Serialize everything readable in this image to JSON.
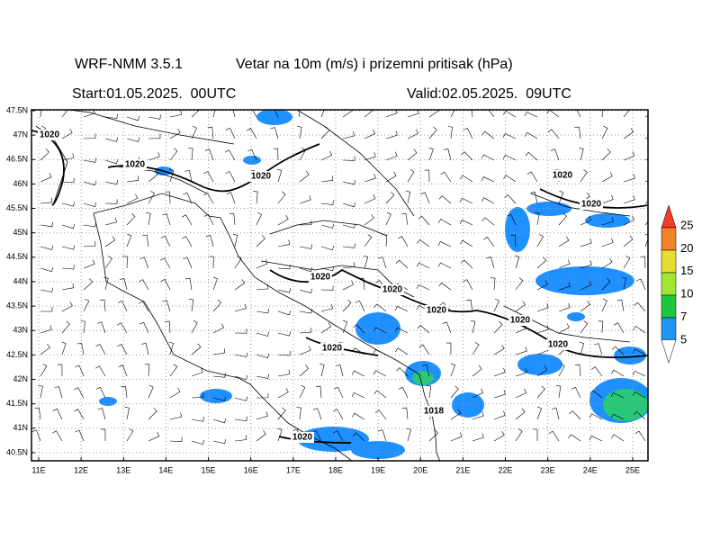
{
  "header": {
    "model": "WRF-NMM 3.5.1",
    "title": "Vetar na 10m (m/s) i prizemni pritisak (hPa)",
    "start": "Start:01.05.2025.  00UTC",
    "valid": "Valid:02.05.2025.  09UTC"
  },
  "map": {
    "lat_labels": [
      "47.5N",
      "47N",
      "46.5N",
      "46N",
      "45.5N",
      "45N",
      "44.5N",
      "44N",
      "43.5N",
      "43N",
      "42.5N",
      "42N",
      "41.5N",
      "41N",
      "40.5N"
    ],
    "lon_labels": [
      "11E",
      "12E",
      "13E",
      "14E",
      "15E",
      "16E",
      "17E",
      "18E",
      "19E",
      "20E",
      "21E",
      "22E",
      "23E",
      "24E",
      "25E"
    ],
    "isobar_labels": [
      "1020",
      "1020",
      "1020",
      "1020",
      "1020",
      "1020",
      "1020",
      "1020",
      "1020",
      "1020",
      "1020",
      "1020",
      "1018"
    ]
  },
  "legend": {
    "labels": [
      "25",
      "20",
      "15",
      "10",
      "7",
      "5"
    ]
  }
}
